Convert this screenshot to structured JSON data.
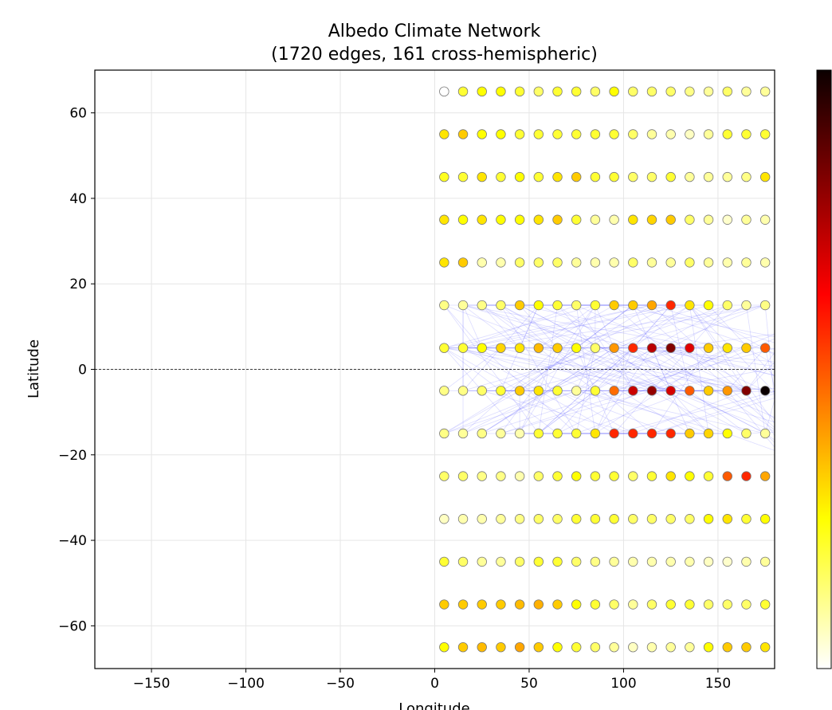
{
  "chart_data": {
    "type": "scatter",
    "title": "Albedo Climate Network",
    "subtitle": "(1720 edges, 161 cross-hemispheric)",
    "xlabel": "Longitude",
    "ylabel": "Latitude",
    "xlim": [
      -180,
      180
    ],
    "ylim": [
      -70,
      70
    ],
    "x_ticks": [
      -150,
      -100,
      -50,
      0,
      50,
      100,
      150
    ],
    "x_tick_labels": [
      "−150",
      "−100",
      "−50",
      "0",
      "50",
      "100",
      "150"
    ],
    "y_ticks": [
      -60,
      -40,
      -20,
      0,
      20,
      40,
      60
    ],
    "y_tick_labels": [
      "−60",
      "−40",
      "−20",
      "0",
      "20",
      "40",
      "60"
    ],
    "grid": true,
    "equator_line": true,
    "colormap": "hot_r",
    "colorbar": true,
    "node_lons": [
      5,
      15,
      25,
      35,
      45,
      55,
      65,
      75,
      85,
      95,
      105,
      115,
      125,
      135,
      145,
      155,
      165,
      175
    ],
    "node_lats": [
      65,
      55,
      45,
      35,
      25,
      15,
      5,
      -5,
      -15,
      -25,
      -35,
      -45,
      -55,
      -65
    ],
    "node_values": [
      [
        0.0,
        0.2,
        0.25,
        0.25,
        0.2,
        0.15,
        0.2,
        0.2,
        0.15,
        0.25,
        0.15,
        0.15,
        0.15,
        0.12,
        0.1,
        0.15,
        0.1,
        0.1
      ],
      [
        0.3,
        0.35,
        0.25,
        0.25,
        0.2,
        0.2,
        0.2,
        0.2,
        0.2,
        0.2,
        0.15,
        0.1,
        0.08,
        0.06,
        0.1,
        0.2,
        0.2,
        0.2
      ],
      [
        0.22,
        0.2,
        0.3,
        0.2,
        0.25,
        0.2,
        0.3,
        0.35,
        0.2,
        0.2,
        0.15,
        0.15,
        0.2,
        0.1,
        0.1,
        0.1,
        0.12,
        0.3
      ],
      [
        0.3,
        0.25,
        0.3,
        0.25,
        0.25,
        0.3,
        0.35,
        0.2,
        0.1,
        0.08,
        0.3,
        0.33,
        0.35,
        0.15,
        0.1,
        0.05,
        0.1,
        0.08
      ],
      [
        0.3,
        0.35,
        0.08,
        0.08,
        0.15,
        0.15,
        0.15,
        0.1,
        0.08,
        0.08,
        0.15,
        0.1,
        0.1,
        0.15,
        0.1,
        0.08,
        0.1,
        0.08
      ],
      [
        0.12,
        0.1,
        0.12,
        0.15,
        0.35,
        0.25,
        0.2,
        0.15,
        0.2,
        0.35,
        0.35,
        0.42,
        0.58,
        0.3,
        0.25,
        0.15,
        0.1,
        0.12
      ],
      [
        0.2,
        0.2,
        0.25,
        0.33,
        0.3,
        0.38,
        0.35,
        0.25,
        0.15,
        0.45,
        0.58,
        0.75,
        0.85,
        0.68,
        0.35,
        0.3,
        0.35,
        0.52
      ],
      [
        0.12,
        0.12,
        0.15,
        0.2,
        0.35,
        0.3,
        0.2,
        0.1,
        0.2,
        0.5,
        0.72,
        0.82,
        0.7,
        0.52,
        0.35,
        0.45,
        0.85,
        1.0
      ],
      [
        0.12,
        0.1,
        0.12,
        0.1,
        0.08,
        0.2,
        0.2,
        0.2,
        0.3,
        0.58,
        0.58,
        0.58,
        0.58,
        0.35,
        0.33,
        0.25,
        0.15,
        0.1
      ],
      [
        0.15,
        0.15,
        0.12,
        0.12,
        0.08,
        0.15,
        0.2,
        0.25,
        0.2,
        0.2,
        0.15,
        0.2,
        0.3,
        0.25,
        0.2,
        0.52,
        0.58,
        0.42
      ],
      [
        0.06,
        0.08,
        0.08,
        0.1,
        0.12,
        0.15,
        0.15,
        0.2,
        0.2,
        0.2,
        0.15,
        0.15,
        0.15,
        0.15,
        0.25,
        0.3,
        0.2,
        0.25
      ],
      [
        0.2,
        0.15,
        0.1,
        0.1,
        0.15,
        0.2,
        0.2,
        0.15,
        0.12,
        0.1,
        0.08,
        0.08,
        0.08,
        0.08,
        0.06,
        0.05,
        0.08,
        0.1
      ],
      [
        0.35,
        0.35,
        0.35,
        0.35,
        0.38,
        0.4,
        0.35,
        0.25,
        0.2,
        0.15,
        0.1,
        0.15,
        0.2,
        0.2,
        0.15,
        0.15,
        0.15,
        0.2
      ],
      [
        0.25,
        0.35,
        0.38,
        0.35,
        0.42,
        0.35,
        0.25,
        0.2,
        0.15,
        0.1,
        0.06,
        0.08,
        0.1,
        0.1,
        0.25,
        0.35,
        0.35,
        0.3
      ]
    ]
  }
}
